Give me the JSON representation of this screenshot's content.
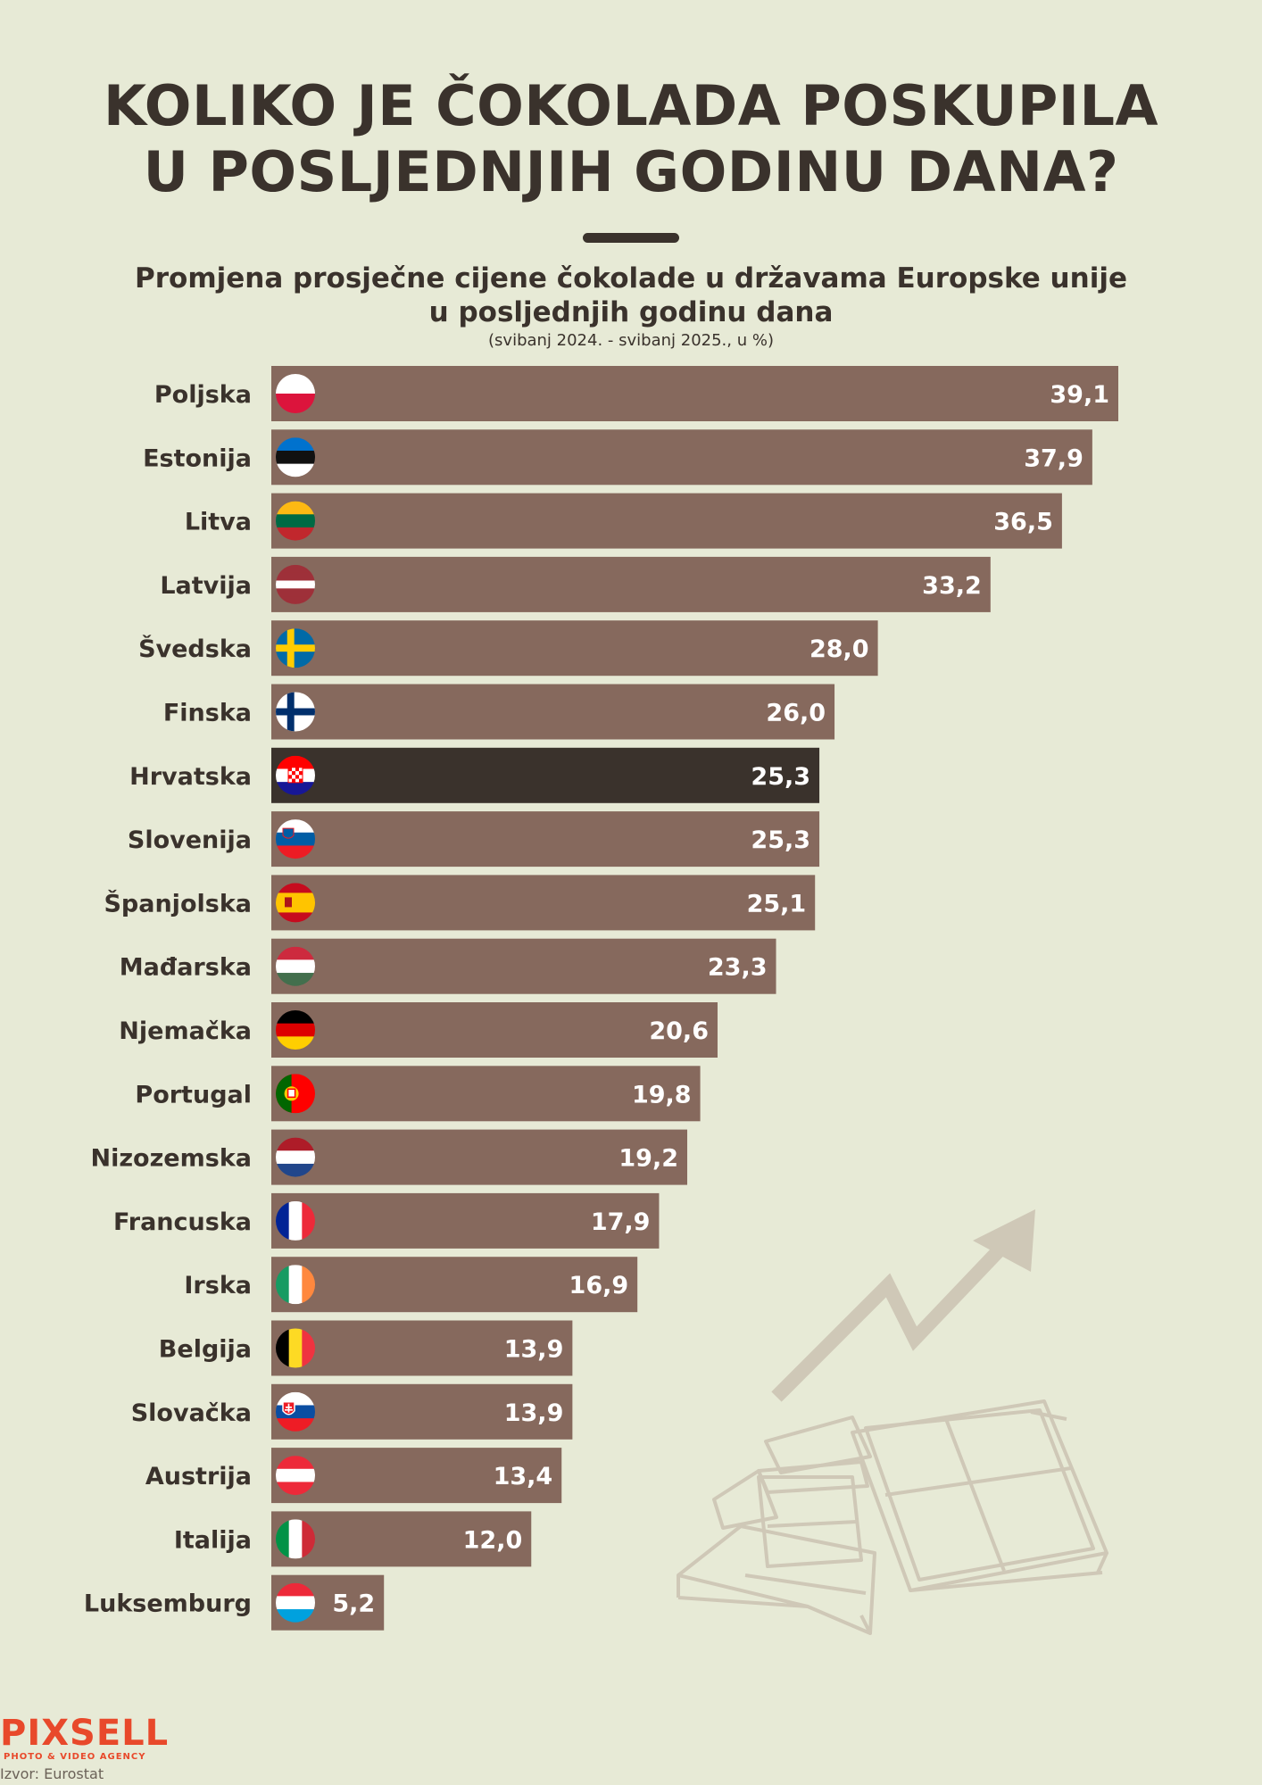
{
  "title": {
    "line1": "KOLIKO JE ČOKOLADA POSKUPILA",
    "line2": "U POSLJEDNJIH GODINU DANA?"
  },
  "subtitle": {
    "line1": "Promjena prosječne cijene čokolade u državama Europske unije",
    "line2": "u posljednjih godinu dana"
  },
  "note": "(svibanj 2024. - svibanj 2025., u %)",
  "logo": {
    "name": "PIXSELL",
    "tagline": "PHOTO & VIDEO AGENCY"
  },
  "source": "Izvor: Eurostat",
  "colors": {
    "bar": "#86695d",
    "highlight_bar": "#3a322c",
    "background": "#e7ead6",
    "text": "#3a322c",
    "decoration": "#cfc8b7",
    "logo": "#e8492b"
  },
  "chart_data": {
    "type": "bar",
    "orientation": "horizontal",
    "categories": [
      "Poljska",
      "Estonija",
      "Litva",
      "Latvija",
      "Švedska",
      "Finska",
      "Hrvatska",
      "Slovenija",
      "Španjolska",
      "Mađarska",
      "Njemačka",
      "Portugal",
      "Nizozemska",
      "Francuska",
      "Irska",
      "Belgija",
      "Slovačka",
      "Austrija",
      "Italija",
      "Luksemburg"
    ],
    "values": [
      39.1,
      37.9,
      36.5,
      33.2,
      28.0,
      26.0,
      25.3,
      25.3,
      25.1,
      23.3,
      20.6,
      19.8,
      19.2,
      17.9,
      16.9,
      13.9,
      13.9,
      13.4,
      12.0,
      5.2
    ],
    "labels": [
      "39,1",
      "37,9",
      "36,5",
      "33,2",
      "28,0",
      "26,0",
      "25,3",
      "25,3",
      "25,1",
      "23,3",
      "20,6",
      "19,8",
      "19,2",
      "17,9",
      "16,9",
      "13,9",
      "13,9",
      "13,4",
      "12,0",
      "5,2"
    ],
    "highlight": "Hrvatska",
    "flags": [
      "poland-flag-icon",
      "estonia-flag-icon",
      "lithuania-flag-icon",
      "latvia-flag-icon",
      "sweden-flag-icon",
      "finland-flag-icon",
      "croatia-flag-icon",
      "slovenia-flag-icon",
      "spain-flag-icon",
      "hungary-flag-icon",
      "germany-flag-icon",
      "portugal-flag-icon",
      "netherlands-flag-icon",
      "france-flag-icon",
      "ireland-flag-icon",
      "belgium-flag-icon",
      "slovakia-flag-icon",
      "austria-flag-icon",
      "italy-flag-icon",
      "luxembourg-flag-icon"
    ],
    "xlim": [
      0,
      39.1
    ],
    "grid": false,
    "legend": "none",
    "title": "KOLIKO JE ČOKOLADA POSKUPILA U POSLJEDNJIH GODINU DANA?",
    "xlabel": "",
    "ylabel": ""
  }
}
